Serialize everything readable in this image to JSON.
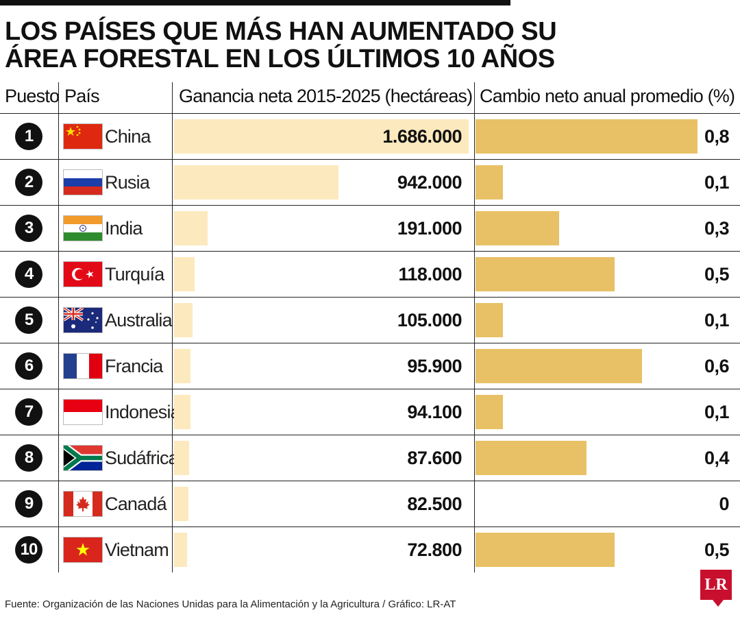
{
  "title": {
    "line1": "LOS PAÍSES QUE MÁS HAN AUMENTADO SU",
    "line2": "ÁREA FORESTAL EN LOS ÚLTIMOS 10 AÑOS"
  },
  "headers": {
    "rank": "Puesto",
    "country": "País",
    "gain": "Ganancia neta 2015-2025 (hectáreas)",
    "rate": "Cambio neto anual promedio (%)"
  },
  "chart_data": {
    "type": "table",
    "title": "LOS PAÍSES QUE MÁS HAN AUMENTADO SU ÁREA FORESTAL EN LOS ÚLTIMOS 10 AÑOS",
    "columns": [
      "Puesto",
      "País",
      "Ganancia neta 2015-2025 (hectáreas)",
      "Cambio neto anual promedio (%)"
    ],
    "rows": [
      {
        "rank": "1",
        "country": "China",
        "flag": "china-flag-icon",
        "gain": 1686000,
        "gain_label": "1.686.000",
        "rate": 0.8,
        "rate_label": "0,8"
      },
      {
        "rank": "2",
        "country": "Rusia",
        "flag": "russia-flag-icon",
        "gain": 942000,
        "gain_label": "942.000",
        "rate": 0.1,
        "rate_label": "0,1"
      },
      {
        "rank": "3",
        "country": "India",
        "flag": "india-flag-icon",
        "gain": 191000,
        "gain_label": "191.000",
        "rate": 0.3,
        "rate_label": "0,3"
      },
      {
        "rank": "4",
        "country": "Turquía",
        "flag": "turkey-flag-icon",
        "gain": 118000,
        "gain_label": "118.000",
        "rate": 0.5,
        "rate_label": "0,5"
      },
      {
        "rank": "5",
        "country": "Australia",
        "flag": "australia-flag-icon",
        "gain": 105000,
        "gain_label": "105.000",
        "rate": 0.1,
        "rate_label": "0,1"
      },
      {
        "rank": "6",
        "country": "Francia",
        "flag": "france-flag-icon",
        "gain": 95900,
        "gain_label": "95.900",
        "rate": 0.6,
        "rate_label": "0,6"
      },
      {
        "rank": "7",
        "country": "Indonesia",
        "flag": "indonesia-flag-icon",
        "gain": 94100,
        "gain_label": "94.100",
        "rate": 0.1,
        "rate_label": "0,1"
      },
      {
        "rank": "8",
        "country": "Sudáfrica",
        "flag": "south-africa-flag-icon",
        "gain": 87600,
        "gain_label": "87.600",
        "rate": 0.4,
        "rate_label": "0,4"
      },
      {
        "rank": "9",
        "country": "Canadá",
        "flag": "canada-flag-icon",
        "gain": 82500,
        "gain_label": "82.500",
        "rate": 0,
        "rate_label": "0"
      },
      {
        "rank": "10",
        "country": "Vietnam",
        "flag": "vietnam-flag-icon",
        "gain": 72800,
        "gain_label": "72.800",
        "rate": 0.5,
        "rate_label": "0,5"
      }
    ],
    "gain_max": 1686000,
    "rate_max": 0.8
  },
  "colors": {
    "gain_bar": "#fce9bd",
    "rate_bar": "#e8c166",
    "logo": "#c8102e"
  },
  "source": "Fuente: Organización de las Naciones Unidas para la Alimentación y la Agricultura / Gráfico: LR-AT",
  "logo_text": "LR"
}
